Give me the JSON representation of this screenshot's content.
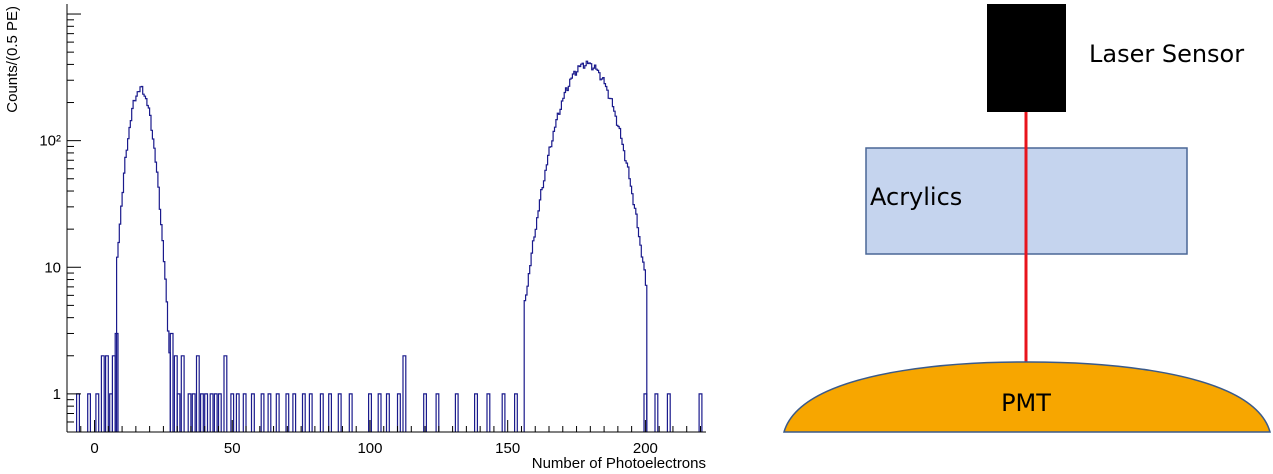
{
  "chart_data": {
    "type": "histogram",
    "title": "",
    "xlabel": "Number of Photoelectrons",
    "ylabel": "Counts/(0.5 PE)",
    "xlim": [
      -10,
      222
    ],
    "ylim": [
      0.5,
      1200
    ],
    "yscale": "log",
    "grid": false,
    "line_color": "#1a1a8c",
    "x_ticks": [
      0,
      50,
      100,
      150,
      200
    ],
    "x_tick_labels": [
      "0",
      "50",
      "100",
      "150",
      "200"
    ],
    "y_ticks": [
      1,
      10,
      100
    ],
    "y_tick_labels": [
      "1",
      "10",
      "10²"
    ],
    "bin_width": 0.5,
    "peaks": [
      {
        "center": 16.5,
        "height": 255,
        "sigma": 3.4
      },
      {
        "center": 178.5,
        "height": 405,
        "sigma": 7.6
      }
    ],
    "tail_bins": [
      {
        "x": -6.5,
        "y": 1
      },
      {
        "x": -2.5,
        "y": 1
      },
      {
        "x": 0.5,
        "y": 1
      },
      {
        "x": 2.5,
        "y": 2
      },
      {
        "x": 4.0,
        "y": 2
      },
      {
        "x": 5.5,
        "y": 1
      },
      {
        "x": 6.5,
        "y": 2
      },
      {
        "x": 7.5,
        "y": 3
      },
      {
        "x": 27.5,
        "y": 3
      },
      {
        "x": 29.0,
        "y": 2
      },
      {
        "x": 30.0,
        "y": 1
      },
      {
        "x": 31.5,
        "y": 2
      },
      {
        "x": 34.0,
        "y": 1
      },
      {
        "x": 35.5,
        "y": 1
      },
      {
        "x": 37.0,
        "y": 2
      },
      {
        "x": 38.5,
        "y": 1
      },
      {
        "x": 40.0,
        "y": 1
      },
      {
        "x": 42.0,
        "y": 1
      },
      {
        "x": 43.5,
        "y": 1
      },
      {
        "x": 45.0,
        "y": 1
      },
      {
        "x": 47.0,
        "y": 2
      },
      {
        "x": 49.5,
        "y": 1
      },
      {
        "x": 51.5,
        "y": 1
      },
      {
        "x": 54.0,
        "y": 1
      },
      {
        "x": 57.0,
        "y": 1
      },
      {
        "x": 60.5,
        "y": 1
      },
      {
        "x": 63.0,
        "y": 1
      },
      {
        "x": 66.0,
        "y": 1
      },
      {
        "x": 69.5,
        "y": 1
      },
      {
        "x": 72.0,
        "y": 1
      },
      {
        "x": 75.5,
        "y": 1
      },
      {
        "x": 78.0,
        "y": 1
      },
      {
        "x": 82.0,
        "y": 1
      },
      {
        "x": 85.0,
        "y": 1
      },
      {
        "x": 88.5,
        "y": 1
      },
      {
        "x": 92.5,
        "y": 1
      },
      {
        "x": 99.5,
        "y": 1
      },
      {
        "x": 103.0,
        "y": 1
      },
      {
        "x": 106.0,
        "y": 1
      },
      {
        "x": 110.0,
        "y": 1
      },
      {
        "x": 112.0,
        "y": 2
      },
      {
        "x": 119.5,
        "y": 1
      },
      {
        "x": 124.0,
        "y": 1
      },
      {
        "x": 131.0,
        "y": 1
      },
      {
        "x": 138.0,
        "y": 1
      },
      {
        "x": 142.5,
        "y": 1
      },
      {
        "x": 148.0,
        "y": 1
      },
      {
        "x": 152.5,
        "y": 1
      },
      {
        "x": 199.5,
        "y": 1
      },
      {
        "x": 203.5,
        "y": 1
      },
      {
        "x": 208.0,
        "y": 1
      },
      {
        "x": 219.5,
        "y": 1
      }
    ]
  },
  "diagram": {
    "laser_label": "Laser Sensor",
    "acrylics_label": "Acrylics",
    "pmt_label": "PMT",
    "colors": {
      "laser_box": "#000000",
      "acrylics_fill": "#c5d4ee",
      "acrylics_stroke": "#4a6796",
      "beam": "#e8141c",
      "pmt_fill": "#f7a600",
      "pmt_stroke": "#3a5a8a"
    }
  }
}
